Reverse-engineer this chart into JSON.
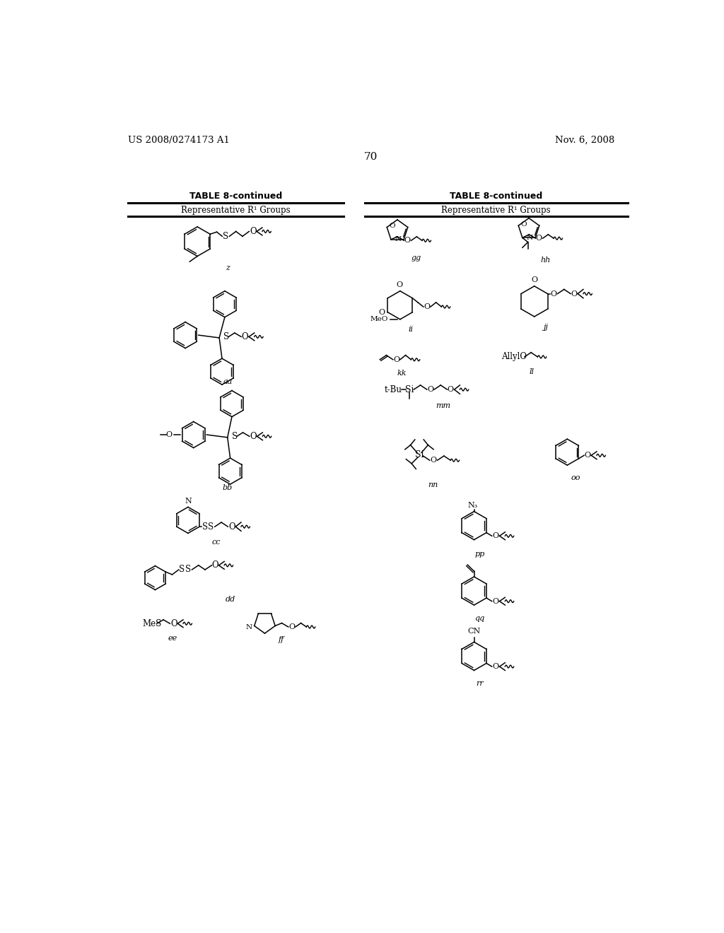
{
  "background_color": "#ffffff",
  "page_number": "70",
  "header_left": "US 2008/0274173 A1",
  "header_right": "Nov. 6, 2008",
  "table_title": "TABLE 8-continued",
  "table_subtitle": "Representative R¹ Groups",
  "figsize": [
    10.24,
    13.2
  ],
  "dpi": 100
}
